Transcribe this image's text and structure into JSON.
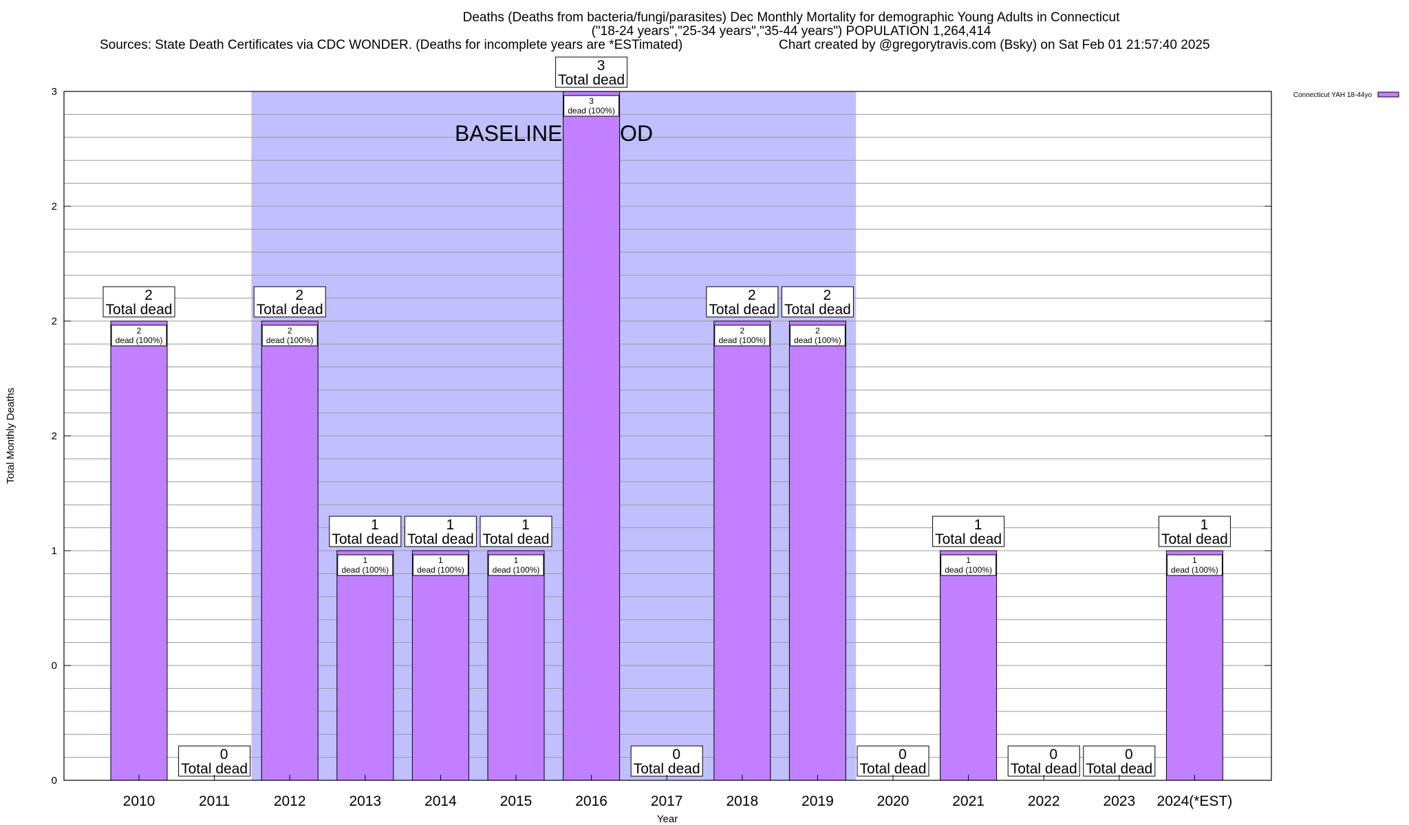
{
  "chart_data": {
    "type": "bar",
    "title_lines": [
      "Deaths (Deaths from bacteria/fungi/parasites) Dec Monthly Mortality for demographic Young Adults in Connecticut",
      "(\"18-24 years\",\"25-34 years\",\"35-44 years\") POPULATION 1,264,414",
      "Sources: State Death Certificates via CDC WONDER. (Deaths for incomplete years are *ESTimated)",
      "Chart created by @gregorytravis.com (Bsky) on Sat Feb 01 21:57:40 2025"
    ],
    "xlabel": "Year",
    "ylabel": "Total Monthly Deaths",
    "ylim": [
      0,
      3
    ],
    "yticks": [
      {
        "value": 0,
        "label": "0"
      },
      {
        "value": 0.5,
        "label": "0"
      },
      {
        "value": 1,
        "label": "1"
      },
      {
        "value": 1.5,
        "label": "2"
      },
      {
        "value": 2,
        "label": "2"
      },
      {
        "value": 2.5,
        "label": "2"
      },
      {
        "value": 3,
        "label": "3"
      }
    ],
    "grid": true,
    "legend_position": "top-right",
    "series": [
      {
        "name": "Connecticut YAH 18-44yo",
        "color": "#c080ff"
      }
    ],
    "categories": [
      "2010",
      "2011",
      "2012",
      "2013",
      "2014",
      "2015",
      "2016",
      "2017",
      "2018",
      "2019",
      "2020",
      "2021",
      "2022",
      "2023",
      "2024(*EST)"
    ],
    "values": [
      2,
      0,
      2,
      1,
      1,
      1,
      3,
      0,
      2,
      2,
      0,
      1,
      0,
      0,
      1
    ],
    "total_label": "Total dead",
    "inner_label": "dead (100%)",
    "baseline": {
      "label": "BASELINE PERIOD",
      "from": "2012",
      "to": "2019",
      "color": "#c0c0ff"
    }
  }
}
